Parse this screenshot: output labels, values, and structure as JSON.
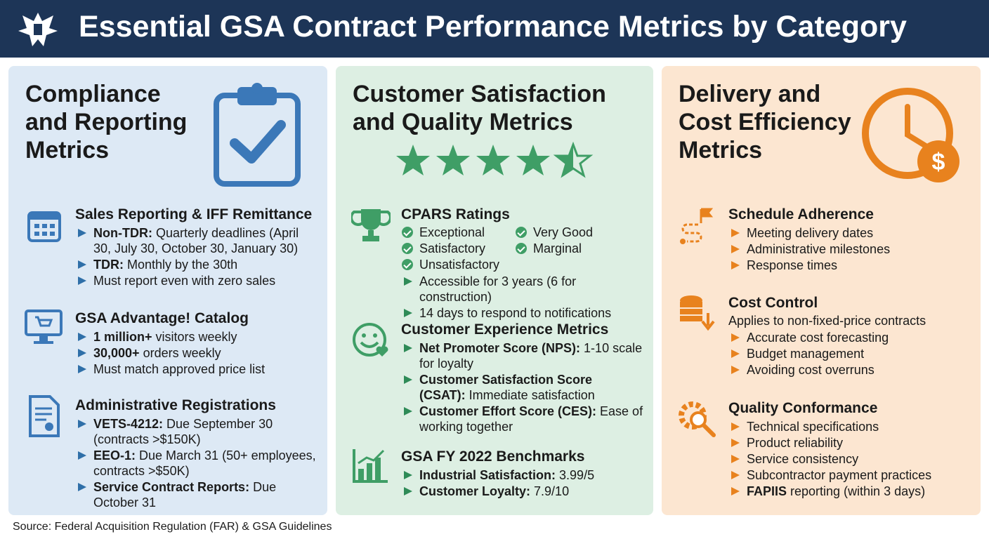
{
  "header": {
    "title": "Essential GSA Contract Performance Metrics by Category"
  },
  "panels": [
    {
      "title_lines": [
        "Compliance",
        "and Reporting",
        "Metrics"
      ],
      "sections": [
        {
          "heading": "Sales Reporting & IFF Remittance",
          "items": [
            {
              "bold": "Non-TDR:",
              "text": "Quarterly deadlines (April 30, July 30, October 30, January 30)"
            },
            {
              "bold": "TDR:",
              "text": "Monthly by the 30th"
            },
            {
              "text": "Must report even with zero sales"
            }
          ]
        },
        {
          "heading": "GSA Advantage! Catalog",
          "items": [
            {
              "bold": "1 million+",
              "text": "visitors weekly"
            },
            {
              "bold": "30,000+",
              "text": "orders weekly"
            },
            {
              "text": "Must match approved price list"
            }
          ]
        },
        {
          "heading": "Administrative Registrations",
          "items": [
            {
              "bold": "VETS-4212:",
              "text": "Due September 30 (contracts >$150K)"
            },
            {
              "bold": "EEO-1:",
              "text": "Due March 31 (50+ employees, contracts >$50K)"
            },
            {
              "bold": "Service Contract Reports:",
              "text": "Due October 31"
            }
          ]
        }
      ]
    },
    {
      "title_lines": [
        "Customer Satisfaction",
        "and Quality Metrics"
      ],
      "sections": [
        {
          "heading": "CPARS Ratings",
          "checks": [
            "Exceptional",
            "Very Good",
            "Satisfactory",
            "Marginal",
            "Unsatisfactory"
          ],
          "items": [
            {
              "text": "Accessible for 3 years (6 for construction)"
            },
            {
              "text": "14 days to respond to notifications"
            }
          ]
        },
        {
          "heading": "Customer Experience Metrics",
          "items": [
            {
              "bold": "Net Promoter Score (NPS):",
              "text": "1-10 scale for loyalty"
            },
            {
              "bold": "Customer Satisfaction Score (CSAT):",
              "text": "Immediate satisfaction"
            },
            {
              "bold": "Customer Effort Score (CES):",
              "text": "Ease of working together"
            }
          ]
        },
        {
          "heading": "GSA FY 2022 Benchmarks",
          "items": [
            {
              "bold": "Industrial Satisfaction:",
              "text": "3.99/5"
            },
            {
              "bold": "Customer Loyalty:",
              "text": "7.9/10"
            }
          ]
        }
      ]
    },
    {
      "title_lines": [
        "Delivery and",
        "Cost Efficiency",
        "Metrics"
      ],
      "sections": [
        {
          "heading": "Schedule Adherence",
          "items": [
            {
              "text": "Meeting delivery dates"
            },
            {
              "text": "Administrative milestones"
            },
            {
              "text": "Response times"
            }
          ]
        },
        {
          "heading": "Cost Control",
          "intro": "Applies to non-fixed-price contracts",
          "items": [
            {
              "text": "Accurate cost forecasting"
            },
            {
              "text": "Budget management"
            },
            {
              "text": "Avoiding cost overruns"
            }
          ]
        },
        {
          "heading": "Quality Conformance",
          "items": [
            {
              "text": "Technical specifications"
            },
            {
              "text": "Product reliability"
            },
            {
              "text": "Service consistency"
            },
            {
              "text": "Subcontractor payment practices"
            },
            {
              "bold": "FAPIIS",
              "text": "reporting (within 3 days)"
            }
          ]
        }
      ]
    }
  ],
  "source": "Source: Federal Acquisition Regulation (FAR) & GSA Guidelines"
}
